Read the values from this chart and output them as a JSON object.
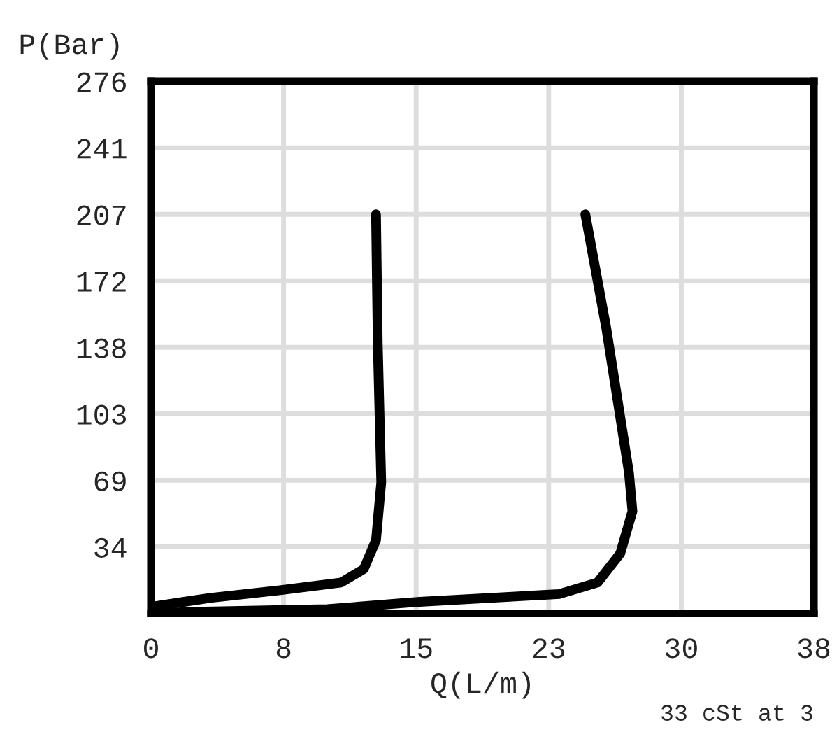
{
  "chart_data": {
    "type": "line",
    "xlabel": "Q(L/m)",
    "ylabel": "P(Bar)",
    "annotations": [
      "33 cSt at 3"
    ],
    "xlim": [
      0,
      38
    ],
    "xticks": [
      0,
      {
        "value": 7.6,
        "label": "8"
      },
      {
        "value": 15.2,
        "label": "15"
      },
      {
        "value": 22.8,
        "label": "23"
      },
      {
        "value": 30.4,
        "label": "30"
      },
      38
    ],
    "ylim": [
      0,
      276
    ],
    "yticks": [
      {
        "value": 34.5,
        "label": "34"
      },
      69,
      {
        "value": 103.5,
        "label": "103"
      },
      138,
      {
        "value": 172.5,
        "label": "172"
      },
      207,
      {
        "value": 241.5,
        "label": "241"
      },
      276
    ],
    "grid": true,
    "legend": false,
    "marker": "none",
    "line_style": "solid",
    "series": [
      {
        "color": "#000000",
        "x": [
          0,
          0.2,
          3.4,
          7.4,
          10.9,
          12.2,
          12.9,
          13.2,
          13.0,
          12.9
        ],
        "values": [
          0,
          3.7,
          8,
          12,
          16,
          23,
          38,
          68,
          140,
          207
        ]
      },
      {
        "color": "#000000",
        "x": [
          0,
          2.1,
          10.1,
          15.4,
          23.4,
          25.6,
          26.9,
          27.6,
          27.4,
          26.1,
          24.9
        ],
        "values": [
          0,
          0.7,
          2.2,
          6,
          10,
          16,
          31,
          53,
          73,
          148,
          207
        ]
      }
    ]
  }
}
